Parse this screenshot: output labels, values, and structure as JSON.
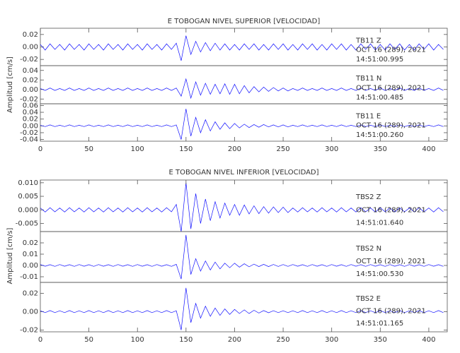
{
  "chart_data": [
    {
      "type": "line",
      "title": "E TOBOGAN NIVEL SUPERIOR [VELOCIDAD]",
      "ylabel": "Amplitud [cm/s]",
      "x": [
        0,
        5,
        10,
        15,
        20,
        25,
        30,
        35,
        40,
        45,
        50,
        55,
        60,
        65,
        70,
        75,
        80,
        85,
        90,
        95,
        100,
        105,
        110,
        115,
        120,
        125,
        130,
        135,
        140,
        145,
        150,
        155,
        160,
        165,
        170,
        175,
        180,
        185,
        190,
        195,
        200,
        205,
        210,
        215,
        220,
        225,
        230,
        235,
        240,
        245,
        250,
        255,
        260,
        265,
        270,
        275,
        280,
        285,
        290,
        295,
        300,
        305,
        310,
        315,
        320,
        325,
        330,
        335,
        340,
        345,
        350,
        355,
        360,
        365,
        370,
        375,
        380,
        385,
        390,
        395,
        400,
        405,
        410,
        415
      ],
      "xlim": [
        0,
        419
      ],
      "xticks": [
        0,
        50,
        100,
        150,
        200,
        250,
        300,
        350,
        400
      ],
      "panels": [
        {
          "label": "TB11   Z",
          "date": "OCT 16 (289), 2021",
          "time": "14:51:00.995",
          "color": "#1010ff",
          "ylim": [
            -0.03,
            0.03
          ],
          "yticks": [
            -0.02,
            {
              "value": 0,
              "label": "0.00"
            },
            0.02
          ],
          "values": [
            0.004,
            -0.005,
            0.005,
            -0.004,
            0.004,
            -0.005,
            0.005,
            -0.004,
            0.004,
            -0.005,
            0.005,
            -0.004,
            0.004,
            -0.005,
            0.005,
            -0.004,
            0.004,
            -0.005,
            0.005,
            -0.004,
            0.004,
            -0.005,
            0.005,
            -0.004,
            0.004,
            -0.005,
            0.005,
            -0.004,
            0.006,
            -0.022,
            0.018,
            -0.012,
            0.009,
            -0.008,
            0.007,
            -0.006,
            0.006,
            -0.005,
            0.005,
            -0.005,
            0.004,
            -0.005,
            0.005,
            -0.004,
            0.005,
            -0.005,
            0.004,
            -0.005,
            0.005,
            -0.004,
            0.005,
            -0.005,
            0.004,
            -0.005,
            0.005,
            -0.004,
            0.005,
            -0.005,
            0.004,
            -0.005,
            0.005,
            -0.004,
            0.005,
            -0.005,
            0.004,
            -0.005,
            0.005,
            -0.004,
            0.005,
            -0.005,
            0.004,
            -0.005,
            0.005,
            -0.004,
            0.005,
            -0.005,
            0.004,
            -0.005,
            0.005,
            -0.004,
            0.005,
            -0.005,
            0.004,
            -0.004
          ]
        },
        {
          "label": "TB11   N",
          "date": "OCT 16 (289), 2021",
          "time": "14:51:00.485",
          "color": "#1010ff",
          "ylim": [
            -0.03,
            0.05
          ],
          "yticks": [
            -0.02,
            {
              "value": 0,
              "label": "0.00"
            },
            0.02,
            0.04
          ],
          "values": [
            0.002,
            -0.002,
            0.003,
            -0.002,
            0.002,
            -0.002,
            0.003,
            -0.002,
            0.002,
            -0.002,
            0.003,
            -0.002,
            0.002,
            -0.002,
            0.003,
            -0.002,
            0.002,
            -0.002,
            0.003,
            -0.002,
            0.002,
            -0.002,
            0.003,
            -0.002,
            0.002,
            -0.002,
            0.003,
            -0.002,
            0.003,
            -0.014,
            0.022,
            -0.018,
            0.016,
            -0.012,
            0.013,
            -0.01,
            0.011,
            -0.009,
            0.012,
            -0.01,
            0.011,
            -0.009,
            0.008,
            -0.007,
            0.006,
            -0.005,
            0.005,
            -0.004,
            0.004,
            -0.003,
            0.003,
            -0.003,
            0.002,
            -0.002,
            0.003,
            -0.002,
            0.002,
            -0.002,
            0.003,
            -0.002,
            0.002,
            -0.002,
            0.003,
            -0.002,
            0.002,
            -0.002,
            0.003,
            -0.002,
            0.002,
            -0.002,
            0.003,
            -0.002,
            0.002,
            -0.002,
            0.003,
            -0.002,
            0.002,
            -0.002,
            0.003,
            -0.002,
            0.002,
            -0.002,
            0.003,
            -0.002
          ]
        },
        {
          "label": "TB11   E",
          "date": "OCT 16 (289), 2021",
          "time": "14:51:00.260",
          "color": "#1010ff",
          "ylim": [
            -0.045,
            0.065
          ],
          "yticks": [
            -0.04,
            -0.02,
            {
              "value": 0,
              "label": "0.00"
            },
            0.02,
            0.04,
            0.06
          ],
          "values": [
            0.002,
            -0.002,
            0.003,
            -0.002,
            0.002,
            -0.002,
            0.003,
            -0.002,
            0.002,
            -0.002,
            0.003,
            -0.002,
            0.002,
            -0.002,
            0.003,
            -0.002,
            0.002,
            -0.002,
            0.003,
            -0.002,
            0.002,
            -0.002,
            0.003,
            -0.002,
            0.002,
            -0.002,
            0.003,
            -0.002,
            0.003,
            -0.04,
            0.05,
            -0.03,
            0.025,
            -0.02,
            0.018,
            -0.015,
            0.012,
            -0.01,
            0.009,
            -0.008,
            0.007,
            -0.006,
            0.005,
            -0.005,
            0.004,
            -0.004,
            0.004,
            -0.003,
            0.003,
            -0.003,
            0.003,
            -0.003,
            0.002,
            -0.002,
            0.003,
            -0.002,
            0.002,
            -0.002,
            0.003,
            -0.002,
            0.002,
            -0.002,
            0.003,
            -0.002,
            0.002,
            -0.002,
            0.003,
            -0.002,
            0.002,
            -0.002,
            0.003,
            -0.002,
            0.002,
            -0.002,
            0.003,
            -0.002,
            0.002,
            -0.002,
            0.003,
            -0.002,
            0.002,
            -0.002,
            0.003,
            -0.002
          ]
        }
      ]
    },
    {
      "type": "line",
      "title": "E TOBOGAN NIVEL INFERIOR [VELOCIDAD]",
      "ylabel": "Amplitud [cm/s]",
      "x": [
        0,
        5,
        10,
        15,
        20,
        25,
        30,
        35,
        40,
        45,
        50,
        55,
        60,
        65,
        70,
        75,
        80,
        85,
        90,
        95,
        100,
        105,
        110,
        115,
        120,
        125,
        130,
        135,
        140,
        145,
        150,
        155,
        160,
        165,
        170,
        175,
        180,
        185,
        190,
        195,
        200,
        205,
        210,
        215,
        220,
        225,
        230,
        235,
        240,
        245,
        250,
        255,
        260,
        265,
        270,
        275,
        280,
        285,
        290,
        295,
        300,
        305,
        310,
        315,
        320,
        325,
        330,
        335,
        340,
        345,
        350,
        355,
        360,
        365,
        370,
        375,
        380,
        385,
        390,
        395,
        400,
        405,
        410,
        415
      ],
      "xlim": [
        0,
        419
      ],
      "xticks": [
        0,
        50,
        100,
        150,
        200,
        250,
        300,
        350,
        400
      ],
      "panels": [
        {
          "label": "TBS2   Z",
          "date": "OCT 16 (289), 2021",
          "time": "14:51:01.640",
          "color": "#1010ff",
          "ylim": [
            -0.008,
            0.011
          ],
          "yticks": [
            -0.005,
            {
              "value": 0,
              "label": "0.000"
            },
            0.005,
            {
              "value": 0.01,
              "label": "0.010"
            }
          ],
          "values": [
            0.0007,
            -0.0008,
            0.0008,
            -0.0007,
            0.0007,
            -0.0008,
            0.0008,
            -0.0007,
            0.0007,
            -0.0008,
            0.0008,
            -0.0007,
            0.0007,
            -0.0008,
            0.0008,
            -0.0007,
            0.0007,
            -0.0008,
            0.0008,
            -0.0007,
            0.0007,
            -0.0008,
            0.0008,
            -0.0007,
            0.0007,
            -0.0008,
            0.0008,
            -0.0007,
            0.002,
            -0.008,
            0.01,
            -0.007,
            0.006,
            -0.005,
            0.004,
            -0.004,
            0.003,
            -0.003,
            0.0025,
            -0.002,
            0.002,
            -0.002,
            0.0018,
            -0.0015,
            0.0015,
            -0.0014,
            0.0012,
            -0.0012,
            0.0011,
            -0.001,
            0.001,
            -0.001,
            0.0007,
            -0.0008,
            0.0008,
            -0.0007,
            0.0007,
            -0.0008,
            0.0008,
            -0.0007,
            0.0007,
            -0.0008,
            0.0008,
            -0.0007,
            0.0007,
            -0.0008,
            0.0008,
            -0.0007,
            0.0007,
            -0.0008,
            0.0008,
            -0.0007,
            0.0007,
            -0.0008,
            0.0008,
            -0.0007,
            0.0007,
            -0.0008,
            0.0008,
            -0.0007,
            0.0007,
            -0.0008,
            0.0008,
            -0.0007
          ]
        },
        {
          "label": "TBS2   N",
          "date": "OCT 16 (289), 2021",
          "time": "14:51:00.530",
          "color": "#1010ff",
          "ylim": [
            -0.015,
            0.03
          ],
          "yticks": [
            -0.01,
            {
              "value": 0,
              "label": "0.00"
            },
            0.01,
            0.02
          ],
          "values": [
            0.0008,
            -0.0007,
            0.0007,
            -0.0008,
            0.0008,
            -0.0007,
            0.0007,
            -0.0008,
            0.0008,
            -0.0007,
            0.0007,
            -0.0008,
            0.0008,
            -0.0007,
            0.0007,
            -0.0008,
            0.0008,
            -0.0007,
            0.0007,
            -0.0008,
            0.0008,
            -0.0007,
            0.0007,
            -0.0008,
            0.0008,
            -0.0007,
            0.0007,
            -0.0008,
            0.001,
            -0.012,
            0.027,
            -0.008,
            0.006,
            -0.005,
            0.004,
            -0.004,
            0.003,
            -0.003,
            0.002,
            -0.002,
            0.002,
            -0.0015,
            0.0015,
            -0.0012,
            0.0012,
            -0.001,
            0.001,
            -0.001,
            0.0009,
            -0.0009,
            0.0008,
            -0.0008,
            0.0008,
            -0.0007,
            0.0007,
            -0.0008,
            0.0008,
            -0.0007,
            0.0007,
            -0.0008,
            0.0008,
            -0.0007,
            0.0007,
            -0.0008,
            0.0008,
            -0.0007,
            0.0007,
            -0.0008,
            0.0008,
            -0.0007,
            0.0007,
            -0.0008,
            0.0008,
            -0.0007,
            0.0007,
            -0.0008,
            0.0008,
            -0.0007,
            0.0007,
            -0.0008,
            0.0008,
            -0.0007,
            0.0007,
            -0.0008
          ]
        },
        {
          "label": "TBS2   E",
          "date": "OCT 16 (289), 2021",
          "time": "14:51:01.165",
          "color": "#1010ff",
          "ylim": [
            -0.022,
            0.032
          ],
          "yticks": [
            -0.02,
            {
              "value": 0,
              "label": "0.00"
            },
            0.02
          ],
          "values": [
            0.001,
            -0.001,
            0.0012,
            -0.001,
            0.001,
            -0.001,
            0.0012,
            -0.001,
            0.001,
            -0.001,
            0.0012,
            -0.001,
            0.001,
            -0.001,
            0.0012,
            -0.001,
            0.001,
            -0.001,
            0.0012,
            -0.001,
            0.001,
            -0.001,
            0.0012,
            -0.001,
            0.001,
            -0.001,
            0.0012,
            -0.001,
            0.001,
            -0.02,
            0.026,
            -0.012,
            0.009,
            -0.007,
            0.006,
            -0.005,
            0.004,
            -0.004,
            0.003,
            -0.003,
            0.0025,
            -0.002,
            0.002,
            -0.002,
            0.0015,
            -0.0015,
            0.0012,
            -0.0012,
            0.0011,
            -0.001,
            0.001,
            -0.001,
            0.001,
            -0.001,
            0.0012,
            -0.001,
            0.001,
            -0.001,
            0.0012,
            -0.001,
            0.001,
            -0.001,
            0.0012,
            -0.001,
            0.001,
            -0.001,
            0.0012,
            -0.001,
            0.001,
            -0.001,
            0.0012,
            -0.001,
            0.001,
            -0.001,
            0.0012,
            -0.001,
            0.001,
            -0.001,
            0.0012,
            -0.001,
            0.001,
            -0.001,
            0.0012,
            -0.001
          ]
        }
      ]
    }
  ]
}
